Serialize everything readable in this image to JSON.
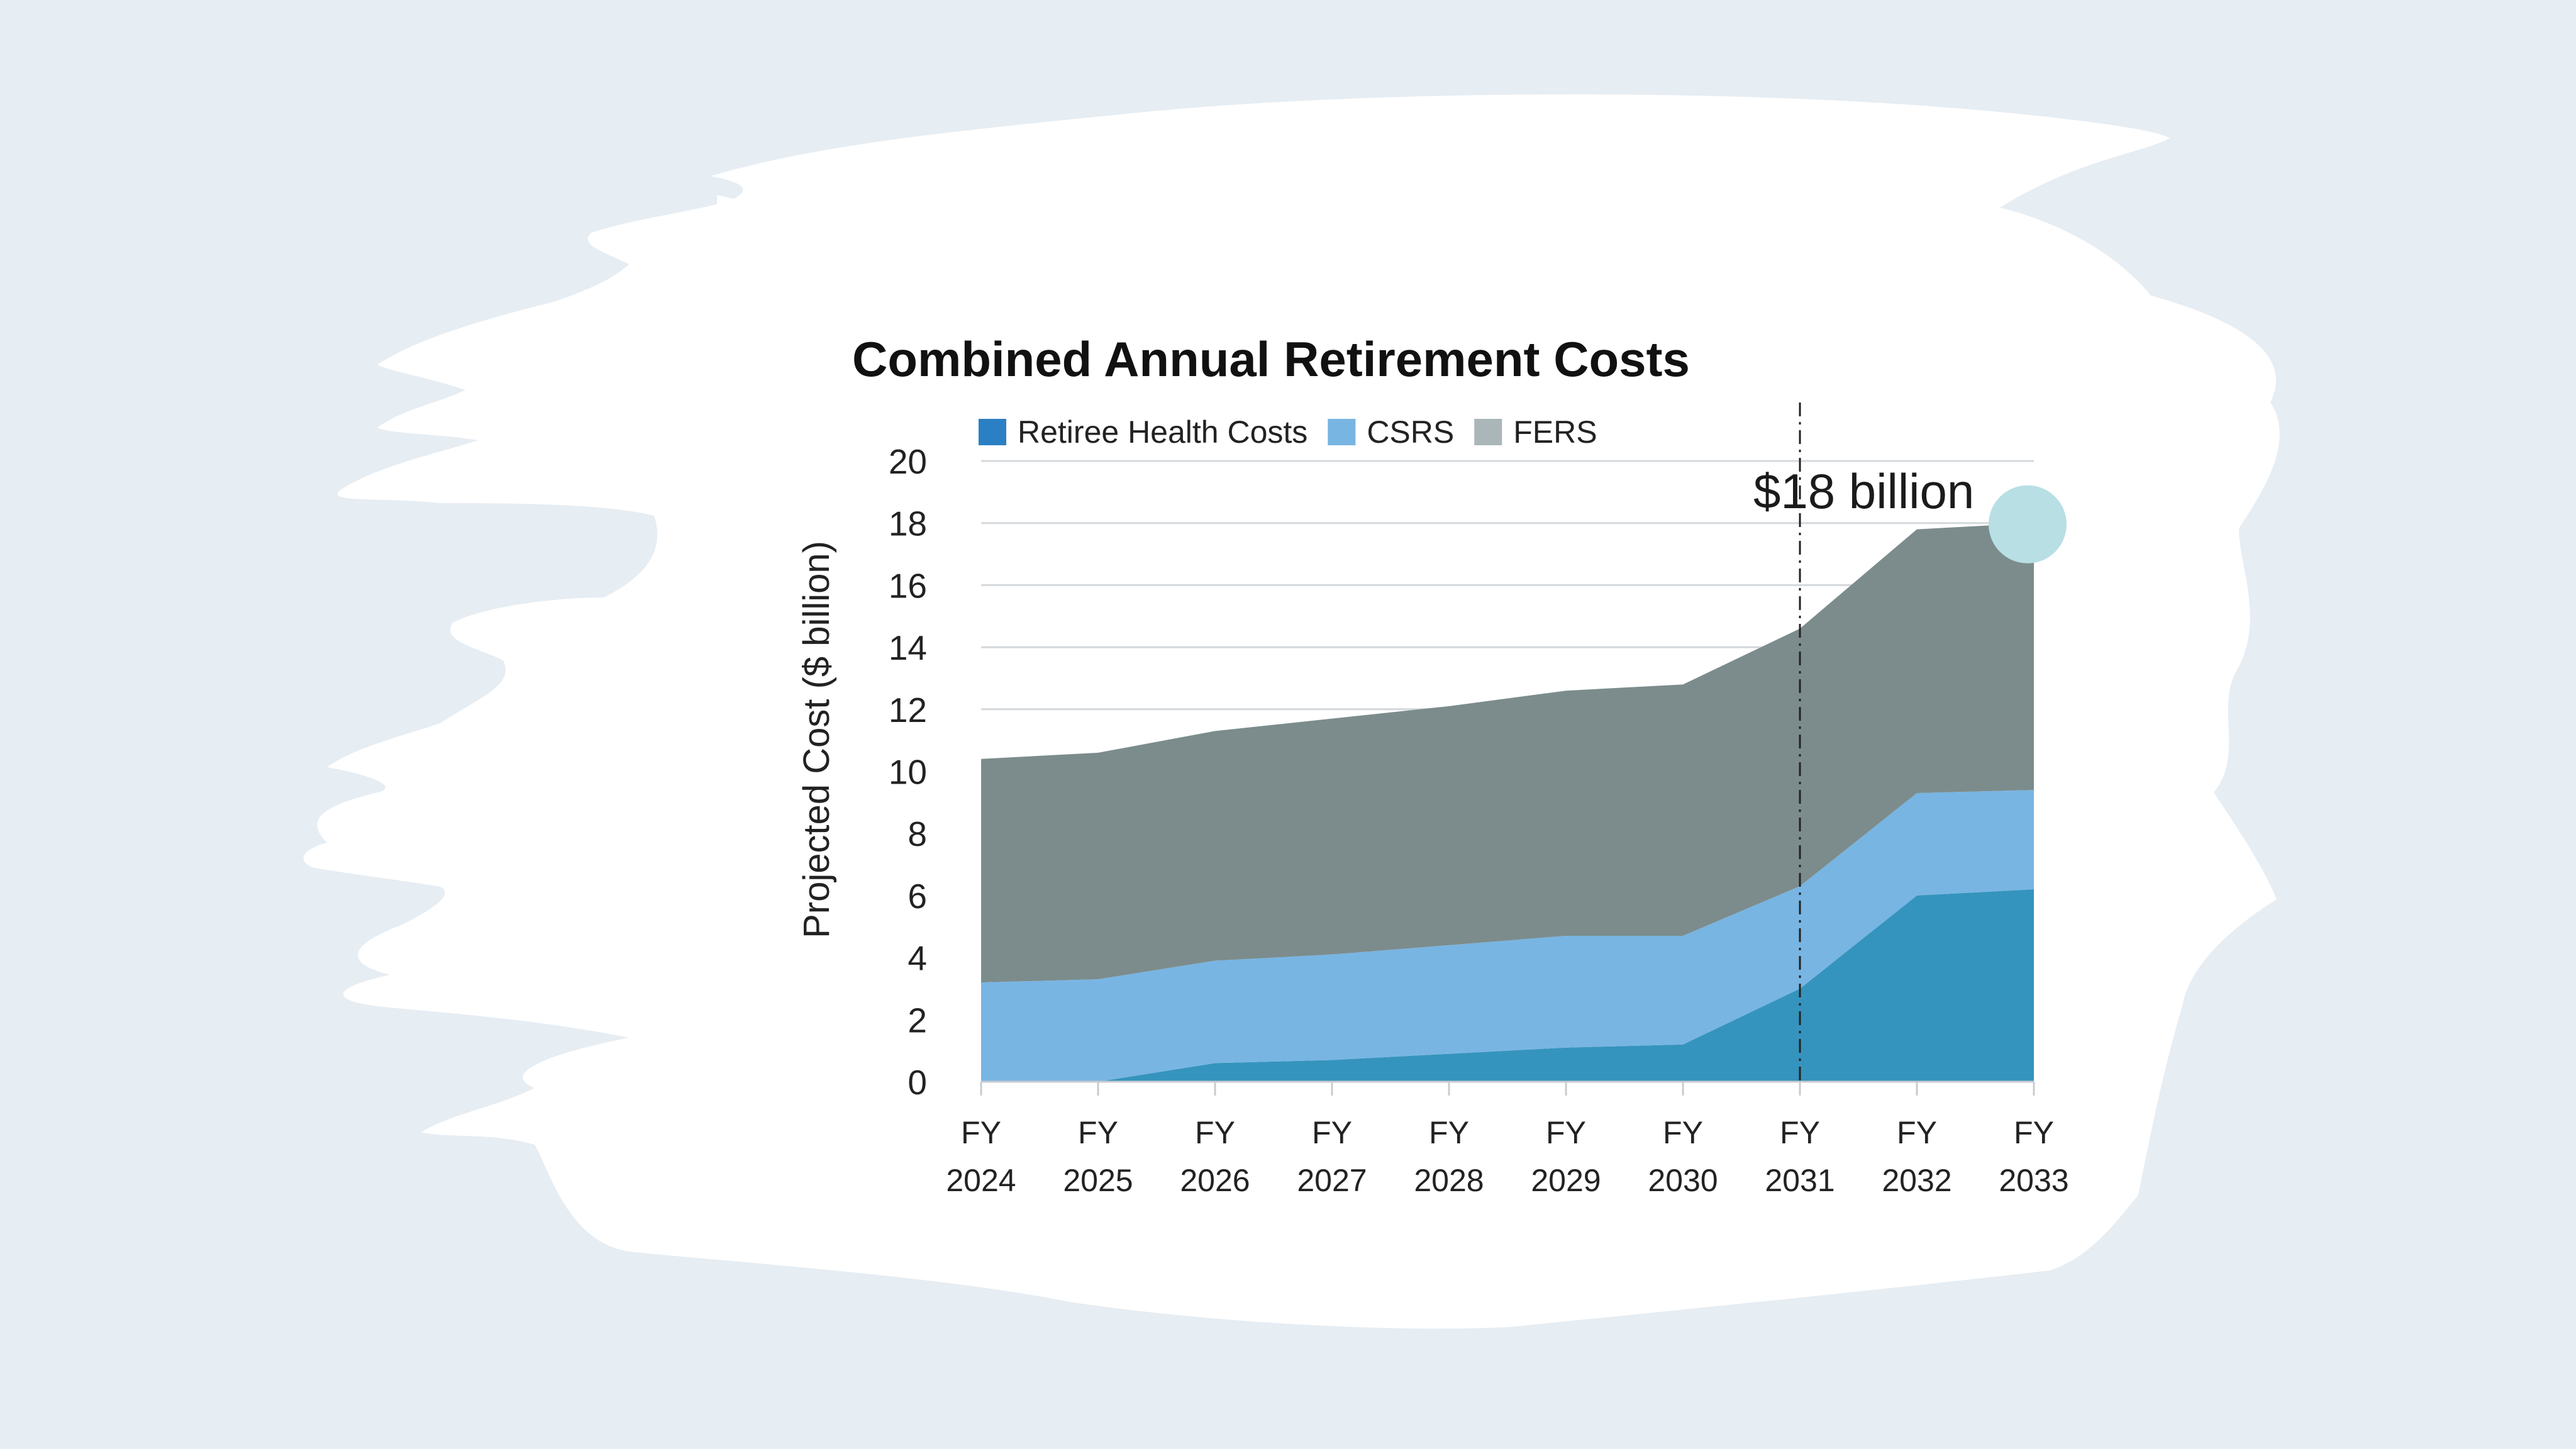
{
  "chart_data": {
    "type": "area",
    "stacked": true,
    "title": "Combined Annual Retirement Costs",
    "ylabel": "Projected Cost ($ billion)",
    "xlabel": "",
    "ylim": [
      0,
      20
    ],
    "yticks": [
      0,
      2,
      4,
      6,
      8,
      10,
      12,
      14,
      16,
      18,
      20
    ],
    "grid": true,
    "legend_position": "top",
    "categories": [
      [
        "FY",
        "2024"
      ],
      [
        "FY",
        "2025"
      ],
      [
        "FY",
        "2026"
      ],
      [
        "FY",
        "2027"
      ],
      [
        "FY",
        "2028"
      ],
      [
        "FY",
        "2029"
      ],
      [
        "FY",
        "2030"
      ],
      [
        "FY",
        "2031"
      ],
      [
        "FY",
        "2032"
      ],
      [
        "FY",
        "2033"
      ]
    ],
    "series": [
      {
        "name": "Retiree Health Costs",
        "color": "#3594bd",
        "legend_color": "#2b7fc4",
        "values": [
          0,
          0,
          0.6,
          0.7,
          0.9,
          1.1,
          1.2,
          3.0,
          6.0,
          6.2
        ]
      },
      {
        "name": "CSRS",
        "color": "#78b5e3",
        "values": [
          3.2,
          3.3,
          3.3,
          3.4,
          3.5,
          3.6,
          3.5,
          3.3,
          3.3,
          3.2
        ]
      },
      {
        "name": "FERS",
        "color": "#7c8c8c",
        "legend_color": "#aab6b8",
        "values": [
          7.2,
          7.3,
          7.4,
          7.6,
          7.7,
          7.9,
          8.1,
          8.3,
          8.5,
          8.6
        ]
      }
    ],
    "annotations": [
      {
        "text": "$18 billion",
        "x_index": 9,
        "y": 18
      }
    ],
    "reference_line": {
      "x_index": 7,
      "style": "dash-dot"
    }
  }
}
